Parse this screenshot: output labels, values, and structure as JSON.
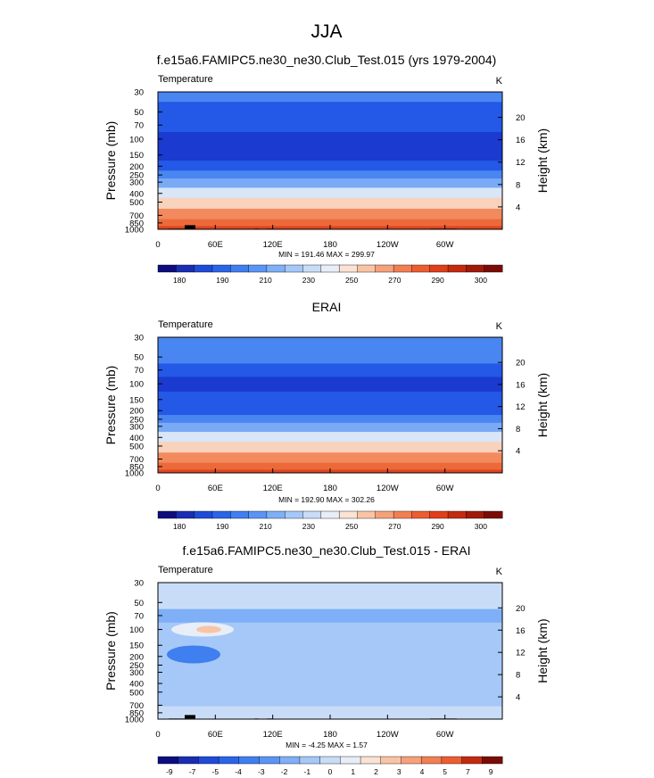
{
  "figure_title": "JJA",
  "chart_data": [
    {
      "type": "heatmap",
      "title": "f.e15a6.FAMIPC5.ne30_ne30.Club_Test.015 (yrs 1979-2004)",
      "left_label": "Temperature",
      "right_label": "K",
      "ylabel": "Pressure (mb)",
      "y2label": "Height (km)",
      "x_ticks": [
        "0",
        "60E",
        "120E",
        "180",
        "120W",
        "60W"
      ],
      "y_ticks": [
        "30",
        "50",
        "70",
        "100",
        "150",
        "200",
        "250",
        "300",
        "400",
        "500",
        "700",
        "850",
        "1000"
      ],
      "height_ticks": [
        "20",
        "16",
        "12",
        "8",
        "4"
      ],
      "stats": "MIN = 191.46  MAX = 299.97",
      "colorbar": {
        "labels": [
          "180",
          "190",
          "210",
          "230",
          "250",
          "270",
          "290",
          "300"
        ],
        "colors": [
          "#0d0d80",
          "#1a2db3",
          "#1f4bd8",
          "#2a64e8",
          "#3f7ff0",
          "#5a95f5",
          "#7eaff7",
          "#a6c8f8",
          "#c9dcf7",
          "#e8eef8",
          "#fbe2d4",
          "#f9c4a4",
          "#f6a17a",
          "#f27f52",
          "#ed5d30",
          "#e03f1a",
          "#c42a10",
          "#a01a0a",
          "#7a0c05"
        ]
      },
      "field": {
        "pressure_levels": [
          30,
          50,
          70,
          100,
          150,
          200,
          250,
          300,
          400,
          500,
          700,
          850,
          1000
        ],
        "zonal_mean_temperature": [
          222,
          214,
          207,
          200,
          204,
          213,
          222,
          231,
          246,
          258,
          273,
          282,
          288
        ]
      }
    },
    {
      "type": "heatmap",
      "title": "ERAI",
      "left_label": "Temperature",
      "right_label": "K",
      "ylabel": "Pressure (mb)",
      "y2label": "Height (km)",
      "x_ticks": [
        "0",
        "60E",
        "120E",
        "180",
        "120W",
        "60W"
      ],
      "y_ticks": [
        "30",
        "50",
        "70",
        "100",
        "150",
        "200",
        "250",
        "300",
        "400",
        "500",
        "700",
        "850",
        "1000"
      ],
      "height_ticks": [
        "20",
        "16",
        "12",
        "8",
        "4"
      ],
      "stats": "MIN = 192.90  MAX = 302.26",
      "colorbar": {
        "labels": [
          "180",
          "190",
          "210",
          "230",
          "250",
          "270",
          "290",
          "300"
        ],
        "colors": [
          "#0d0d80",
          "#1a2db3",
          "#1f4bd8",
          "#2a64e8",
          "#3f7ff0",
          "#5a95f5",
          "#7eaff7",
          "#a6c8f8",
          "#c9dcf7",
          "#e8eef8",
          "#fbe2d4",
          "#f9c4a4",
          "#f6a17a",
          "#f27f52",
          "#ed5d30",
          "#e03f1a",
          "#c42a10",
          "#a01a0a",
          "#7a0c05"
        ]
      },
      "field": {
        "pressure_levels": [
          30,
          50,
          70,
          100,
          150,
          200,
          250,
          300,
          400,
          500,
          700,
          850,
          1000
        ],
        "zonal_mean_temperature": [
          222,
          215,
          207,
          200,
          205,
          214,
          223,
          232,
          247,
          259,
          274,
          283,
          290
        ]
      }
    },
    {
      "type": "heatmap",
      "title": "f.e15a6.FAMIPC5.ne30_ne30.Club_Test.015 - ERAI",
      "left_label": "Temperature",
      "right_label": "K",
      "ylabel": "Pressure (mb)",
      "y2label": "Height (km)",
      "x_ticks": [
        "0",
        "60E",
        "120E",
        "180",
        "120W",
        "60W"
      ],
      "y_ticks": [
        "30",
        "50",
        "70",
        "100",
        "150",
        "200",
        "250",
        "300",
        "400",
        "500",
        "700",
        "850",
        "1000"
      ],
      "height_ticks": [
        "20",
        "16",
        "12",
        "8",
        "4"
      ],
      "stats": "MIN = -4.25  MAX =  1.57",
      "colorbar": {
        "labels": [
          "-9",
          "-7",
          "-5",
          "-4",
          "-3",
          "-2",
          "-1",
          "0",
          "1",
          "2",
          "3",
          "4",
          "5",
          "7",
          "9"
        ],
        "colors": [
          "#0d0d80",
          "#1a2db3",
          "#1f4bd8",
          "#2a64e8",
          "#3f7ff0",
          "#5a95f5",
          "#7eaff7",
          "#a6c8f8",
          "#c9dcf7",
          "#e8eef8",
          "#fbe2d4",
          "#f9c4a4",
          "#f6a17a",
          "#f27f52",
          "#ed5d30",
          "#c42a10",
          "#7a0c05"
        ]
      },
      "field": {
        "pressure_levels": [
          30,
          50,
          70,
          100,
          150,
          200,
          250,
          300,
          400,
          500,
          700,
          850,
          1000
        ],
        "zonal_mean_difference": [
          -1,
          -1,
          -3,
          -2,
          -2,
          -2,
          -1.5,
          -1.5,
          -1.5,
          -1.5,
          -1.5,
          -1,
          -1
        ]
      }
    }
  ]
}
